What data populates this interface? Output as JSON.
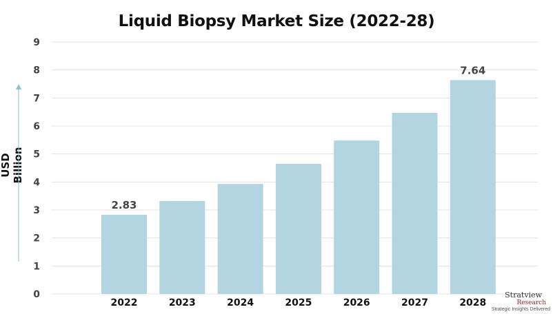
{
  "chart_data": {
    "type": "bar",
    "title": "Liquid Biopsy Market Size (2022-28)",
    "ylabel": "USD Billion",
    "xlabel": "",
    "categories": [
      "2022",
      "2023",
      "2024",
      "2025",
      "2026",
      "2027",
      "2028"
    ],
    "values": [
      2.83,
      3.32,
      3.93,
      4.65,
      5.48,
      6.47,
      7.64
    ],
    "data_labels": {
      "2022": "2.83",
      "2028": "7.64"
    },
    "ylim": [
      0,
      9
    ],
    "yticks": [
      "0",
      "1",
      "2",
      "3",
      "4",
      "5",
      "6",
      "7",
      "8",
      "9"
    ],
    "grid": true,
    "bar_color": "#b3d5e2",
    "arrow_color": "#8fbfd1"
  },
  "logo": {
    "name": "Stratview",
    "sub": "Research",
    "tagline": "Strategic Insights Delivered"
  }
}
